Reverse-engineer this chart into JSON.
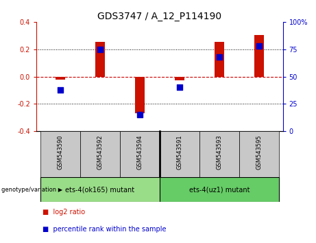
{
  "title": "GDS3747 / A_12_P114190",
  "samples": [
    "GSM543590",
    "GSM543592",
    "GSM543594",
    "GSM543591",
    "GSM543593",
    "GSM543595"
  ],
  "log2_ratios": [
    -0.022,
    0.252,
    -0.27,
    -0.03,
    0.252,
    0.305
  ],
  "percentile_ranks": [
    38,
    75,
    15,
    40,
    68,
    78
  ],
  "bar_color": "#CC1100",
  "dot_color": "#0000CC",
  "ylim_left": [
    -0.4,
    0.4
  ],
  "ylim_right": [
    0,
    100
  ],
  "yticks_left": [
    -0.4,
    -0.2,
    0.0,
    0.2,
    0.4
  ],
  "yticks_right": [
    0,
    25,
    50,
    75,
    100
  ],
  "ytick_labels_right": [
    "0",
    "25",
    "50",
    "75",
    "100%"
  ],
  "zero_line_color": "#CC0000",
  "grid_color": "#000000",
  "groups": [
    {
      "label": "ets-4(ok165) mutant",
      "indices": [
        0,
        1,
        2
      ],
      "color": "#99DD88"
    },
    {
      "label": "ets-4(uz1) mutant",
      "indices": [
        3,
        4,
        5
      ],
      "color": "#66CC66"
    }
  ],
  "group_label_prefix": "genotype/variation",
  "legend_log2_label": "log2 ratio",
  "legend_pct_label": "percentile rank within the sample",
  "bar_width": 0.25,
  "dot_size": 28,
  "background_label": "#C8C8C8",
  "title_fontsize": 10,
  "tick_fontsize": 7,
  "sample_fontsize": 6,
  "group_fontsize": 7,
  "legend_fontsize": 7
}
